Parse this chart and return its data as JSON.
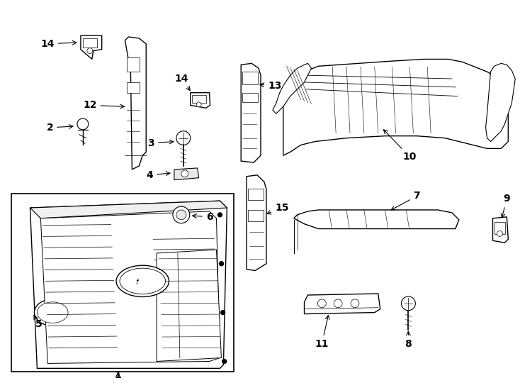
{
  "background_color": "#ffffff",
  "line_color": "#000000",
  "figure_width": 7.34,
  "figure_height": 5.4,
  "dpi": 100
}
